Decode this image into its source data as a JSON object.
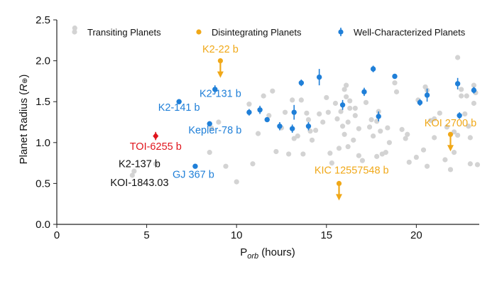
{
  "chart_data": {
    "type": "scatter",
    "xlabel": {
      "base": "P",
      "sub": "orb",
      "rest": " (hours)"
    },
    "ylabel": {
      "base": "Planet Radius (",
      "italic": "R",
      "symbol": "⊕",
      "close": ")"
    },
    "xlim": [
      0,
      23.5
    ],
    "ylim": [
      0,
      2.5
    ],
    "xticks": [
      "0",
      "5",
      "10",
      "15",
      "20"
    ],
    "xtick_values": [
      0,
      5,
      10,
      15,
      20
    ],
    "yticks": [
      "0.0",
      "0.5",
      "1.0",
      "1.5",
      "2.0",
      "2.5"
    ],
    "ytick_values": [
      0.0,
      0.5,
      1.0,
      1.5,
      2.0,
      2.5
    ],
    "grid": false,
    "legend_placement": "top",
    "legend": [
      {
        "label": "Transiting Planets",
        "marker": "dot",
        "color": "#d3d3d3"
      },
      {
        "label": "Disintegrating Planets",
        "marker": "dot",
        "color": "#f0a818"
      },
      {
        "label": "Well-Characterized Planets",
        "marker": "errorbar",
        "color": "#1f7fd8"
      }
    ],
    "series": [
      {
        "name": "Transiting Planets",
        "color": "#d3d3d3",
        "points": [
          [
            1.0,
            2.4
          ],
          [
            4.2,
            0.6
          ],
          [
            4.3,
            0.65
          ],
          [
            5.5,
            0.74
          ],
          [
            8.5,
            0.88
          ],
          [
            8.6,
            1.18
          ],
          [
            9.0,
            1.25
          ],
          [
            9.4,
            0.71
          ],
          [
            10.0,
            0.52
          ],
          [
            10.7,
            1.47
          ],
          [
            10.9,
            0.74
          ],
          [
            11.2,
            1.11
          ],
          [
            11.5,
            1.57
          ],
          [
            11.8,
            1.33
          ],
          [
            12.0,
            1.63
          ],
          [
            12.2,
            0.89
          ],
          [
            12.5,
            1.18
          ],
          [
            12.7,
            1.37
          ],
          [
            12.9,
            0.86
          ],
          [
            13.1,
            1.52
          ],
          [
            13.2,
            1.05
          ],
          [
            13.4,
            1.08
          ],
          [
            13.6,
            1.52
          ],
          [
            13.7,
            0.86
          ],
          [
            13.9,
            1.36
          ],
          [
            14.0,
            1.28
          ],
          [
            14.1,
            1.14
          ],
          [
            14.2,
            1.03
          ],
          [
            14.4,
            1.15
          ],
          [
            14.6,
            1.35
          ],
          [
            14.8,
            1.25
          ],
          [
            15.0,
            1.55
          ],
          [
            15.1,
            1.37
          ],
          [
            15.2,
            0.87
          ],
          [
            15.3,
            0.75
          ],
          [
            15.5,
            1.48
          ],
          [
            15.6,
            1.29
          ],
          [
            15.7,
            0.93
          ],
          [
            15.8,
            1.38
          ],
          [
            15.9,
            1.2
          ],
          [
            16.0,
            1.1
          ],
          [
            16.0,
            1.65
          ],
          [
            16.1,
            1.56
          ],
          [
            16.1,
            1.7
          ],
          [
            16.2,
            1.25
          ],
          [
            16.2,
            0.95
          ],
          [
            16.3,
            1.42
          ],
          [
            16.3,
            1.51
          ],
          [
            16.5,
            1.03
          ],
          [
            16.6,
            1.42
          ],
          [
            16.6,
            1.33
          ],
          [
            16.8,
            1.17
          ],
          [
            16.8,
            0.84
          ],
          [
            17.0,
            0.78
          ],
          [
            17.2,
            1.49
          ],
          [
            17.4,
            1.19
          ],
          [
            17.5,
            1.28
          ],
          [
            17.6,
            1.08
          ],
          [
            17.8,
            0.83
          ],
          [
            17.8,
            1.26
          ],
          [
            17.9,
            1.38
          ],
          [
            18.0,
            1.14
          ],
          [
            18.1,
            0.86
          ],
          [
            18.3,
            0.88
          ],
          [
            18.4,
            1.18
          ],
          [
            18.5,
            1.0
          ],
          [
            18.8,
            1.73
          ],
          [
            18.9,
            1.62
          ],
          [
            19.2,
            1.16
          ],
          [
            19.4,
            1.05
          ],
          [
            19.5,
            1.1
          ],
          [
            19.6,
            0.76
          ],
          [
            20.0,
            0.82
          ],
          [
            20.1,
            1.52
          ],
          [
            20.4,
            0.91
          ],
          [
            20.5,
            1.68
          ],
          [
            20.6,
            1.64
          ],
          [
            20.6,
            0.71
          ],
          [
            20.8,
            1.27
          ],
          [
            21.0,
            1.29
          ],
          [
            21.0,
            1.06
          ],
          [
            21.3,
            1.36
          ],
          [
            21.6,
            0.79
          ],
          [
            21.7,
            1.19
          ],
          [
            21.9,
            0.67
          ],
          [
            22.1,
            1.13
          ],
          [
            22.1,
            0.88
          ],
          [
            22.3,
            1.09
          ],
          [
            22.3,
            2.04
          ],
          [
            22.5,
            1.65
          ],
          [
            22.5,
            1.57
          ],
          [
            22.7,
            1.35
          ],
          [
            22.8,
            1.57
          ],
          [
            22.9,
            1.2
          ],
          [
            23.0,
            1.06
          ],
          [
            23.2,
            1.7
          ],
          [
            23.2,
            1.48
          ],
          [
            23.3,
            1.61
          ],
          [
            23.0,
            0.74
          ],
          [
            23.4,
            0.73
          ]
        ]
      },
      {
        "name": "Well-Characterized Planets",
        "color": "#1f7fd8",
        "points": [
          {
            "x": 6.8,
            "y": 1.5,
            "err": 0.03
          },
          {
            "x": 7.7,
            "y": 0.71,
            "err": 0.02
          },
          {
            "x": 8.5,
            "y": 1.23,
            "err": 0.03
          },
          {
            "x": 8.8,
            "y": 1.65,
            "err": 0.05
          },
          {
            "x": 10.7,
            "y": 1.37,
            "err": 0.04
          },
          {
            "x": 11.3,
            "y": 1.4,
            "err": 0.05
          },
          {
            "x": 11.7,
            "y": 1.28,
            "err": 0.03
          },
          {
            "x": 12.4,
            "y": 1.2,
            "err": 0.05
          },
          {
            "x": 13.1,
            "y": 1.17,
            "err": 0.05
          },
          {
            "x": 13.2,
            "y": 1.37,
            "err": 0.09
          },
          {
            "x": 13.6,
            "y": 1.73,
            "err": 0.04
          },
          {
            "x": 14.0,
            "y": 1.2,
            "err": 0.05
          },
          {
            "x": 14.6,
            "y": 1.8,
            "err": 0.1
          },
          {
            "x": 15.9,
            "y": 1.46,
            "err": 0.06
          },
          {
            "x": 17.1,
            "y": 1.62,
            "err": 0.05
          },
          {
            "x": 17.6,
            "y": 1.9,
            "err": 0.04
          },
          {
            "x": 17.9,
            "y": 1.32,
            "err": 0.06
          },
          {
            "x": 18.8,
            "y": 1.81,
            "err": 0.03
          },
          {
            "x": 20.2,
            "y": 1.49,
            "err": 0.04
          },
          {
            "x": 20.6,
            "y": 1.58,
            "err": 0.08
          },
          {
            "x": 22.3,
            "y": 1.72,
            "err": 0.07
          },
          {
            "x": 22.4,
            "y": 1.33,
            "err": 0.04
          },
          {
            "x": 23.2,
            "y": 1.64,
            "err": 0.04
          }
        ]
      },
      {
        "name": "Disintegrating Planets",
        "color": "#f0a818",
        "upper_limit": true,
        "points": [
          {
            "x": 9.1,
            "y": 2.0,
            "label": "K2-22 b"
          },
          {
            "x": 15.7,
            "y": 0.5,
            "label": "KIC 12557548 b"
          },
          {
            "x": 21.9,
            "y": 1.1,
            "label": "KOI 2700 b"
          }
        ]
      },
      {
        "name": "TOI-6255 b",
        "color": "#e0141c",
        "points": [
          {
            "x": 5.5,
            "y": 1.08,
            "err": 0.05,
            "xerr": 0.03
          }
        ]
      }
    ],
    "annotations": [
      {
        "text": "K2-22 b",
        "x": 9.1,
        "y": 2.1,
        "color": "#f0a818"
      },
      {
        "text": "K2-131 b",
        "x": 9.1,
        "y": 1.56,
        "color": "#1f7fd8"
      },
      {
        "text": "K2-141 b",
        "x": 6.8,
        "y": 1.39,
        "color": "#1f7fd8"
      },
      {
        "text": "Kepler-78 b",
        "x": 8.8,
        "y": 1.11,
        "color": "#1f7fd8"
      },
      {
        "text": "TOI-6255 b",
        "x": 5.5,
        "y": 0.91,
        "color": "#e0141c"
      },
      {
        "text": "K2-137 b",
        "x": 4.6,
        "y": 0.7,
        "color": "#111111"
      },
      {
        "text": "GJ 367 b",
        "x": 7.6,
        "y": 0.57,
        "color": "#1f7fd8"
      },
      {
        "text": "KOI-1843.03",
        "x": 4.6,
        "y": 0.47,
        "color": "#111111"
      },
      {
        "text": "KIC 12557548 b",
        "x": 16.4,
        "y": 0.62,
        "color": "#f0a818"
      },
      {
        "text": "KOI 2700 b",
        "x": 21.9,
        "y": 1.2,
        "color": "#f0a818"
      }
    ]
  }
}
